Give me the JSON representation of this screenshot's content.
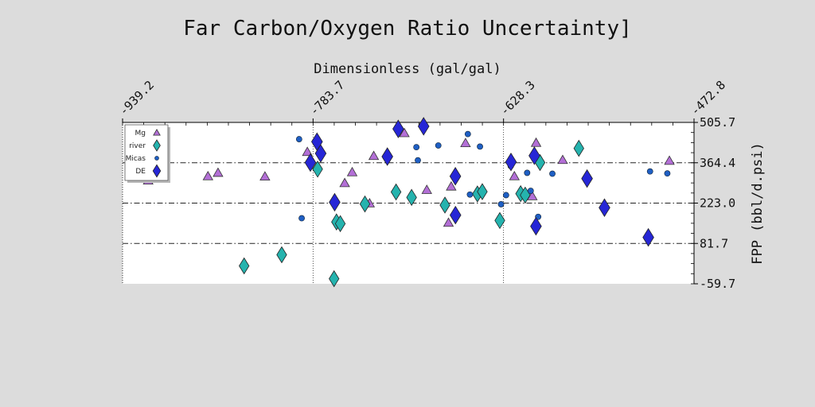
{
  "chart_data": {
    "type": "scatter",
    "title": "Far Carbon/Oxygen Ratio Uncertainty]",
    "xlabel": "Dimensionless (gal/gal)",
    "ylabel": "FPP (bbl/d.psi)",
    "xlim": [
      -939.2,
      -472.8
    ],
    "ylim": [
      -59.7,
      505.7
    ],
    "x_ticks": [
      "-939.2",
      "-783.7",
      "-628.3",
      "-472.8"
    ],
    "y_ticks": [
      "505.7",
      "364.4",
      "223.0",
      "81.7",
      "-59.7"
    ],
    "x_axis_position": "top",
    "y_axis_position": "right",
    "grid": "dash-dot",
    "legend": "top-left",
    "series": [
      {
        "name": "Mg",
        "marker": "triangle",
        "color": "#b36fd6",
        "points": [
          [
            -918.3,
            302
          ],
          [
            -869.5,
            317
          ],
          [
            -861.3,
            329
          ],
          [
            -823.0,
            316
          ],
          [
            -788.4,
            402
          ],
          [
            -757.9,
            293
          ],
          [
            -751.8,
            331
          ],
          [
            -737.6,
            222
          ],
          [
            -734.2,
            388
          ],
          [
            -709.2,
            468
          ],
          [
            -690.9,
            269
          ],
          [
            -673.2,
            154
          ],
          [
            -671.0,
            281
          ],
          [
            -659.3,
            433
          ],
          [
            -619.4,
            317
          ],
          [
            -604.8,
            247
          ],
          [
            -601.7,
            434
          ],
          [
            -580.0,
            374
          ],
          [
            -492.9,
            371
          ]
        ]
      },
      {
        "name": "river",
        "marker": "diamond",
        "color": "#25b3ae",
        "points": [
          [
            -840.0,
            3
          ],
          [
            -809.3,
            42
          ],
          [
            -780.0,
            342
          ],
          [
            -766.6,
            -42
          ],
          [
            -764.6,
            157
          ],
          [
            -761.5,
            151
          ],
          [
            -741.4,
            220
          ],
          [
            -716.0,
            262
          ],
          [
            -703.3,
            243
          ],
          [
            -676.1,
            216
          ],
          [
            -649.6,
            255
          ],
          [
            -645.6,
            263
          ],
          [
            -631.3,
            162
          ],
          [
            -614.3,
            256
          ],
          [
            -610.6,
            251
          ],
          [
            -598.5,
            365
          ],
          [
            -566.8,
            415
          ]
        ]
      },
      {
        "name": "Micas",
        "marker": "circle",
        "color": "#1f5fc4",
        "points": [
          [
            -795.1,
            447
          ],
          [
            -793.0,
            170
          ],
          [
            -699.4,
            419
          ],
          [
            -698.2,
            373
          ],
          [
            -681.5,
            425
          ],
          [
            -657.4,
            465
          ],
          [
            -655.7,
            253
          ],
          [
            -647.5,
            421
          ],
          [
            -630.3,
            219
          ],
          [
            -626.2,
            251
          ],
          [
            -622.4,
            353
          ],
          [
            -609.0,
            329
          ],
          [
            -606.1,
            266
          ],
          [
            -600.0,
            175
          ],
          [
            -588.4,
            326
          ],
          [
            -508.7,
            334
          ],
          [
            -494.6,
            327
          ]
        ]
      },
      {
        "name": "DE",
        "marker": "diamond",
        "color": "#2626d6",
        "points": [
          [
            -785.9,
            365
          ],
          [
            -780.5,
            438
          ],
          [
            -777.5,
            397
          ],
          [
            -766.1,
            226
          ],
          [
            -723.1,
            386
          ],
          [
            -714.2,
            483
          ],
          [
            -693.5,
            492
          ],
          [
            -667.6,
            317
          ],
          [
            -667.5,
            181
          ],
          [
            -622.2,
            367
          ],
          [
            -603.1,
            389
          ],
          [
            -601.8,
            142
          ],
          [
            -560.1,
            309
          ],
          [
            -545.9,
            207
          ],
          [
            -510.1,
            103
          ]
        ]
      }
    ]
  },
  "legend": {
    "items": [
      "Mg",
      "river",
      "Micas",
      "DE"
    ]
  }
}
